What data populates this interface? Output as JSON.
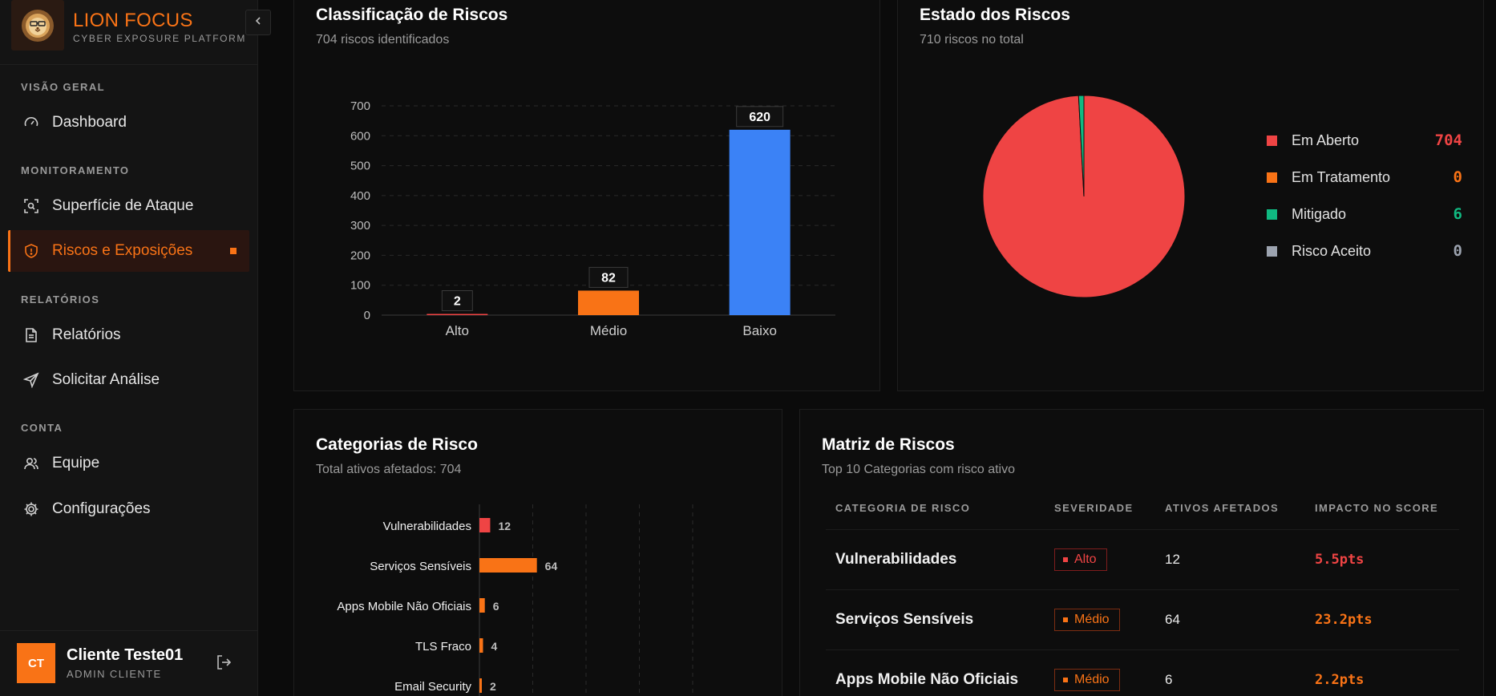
{
  "brand": {
    "name": "LION FOCUS",
    "subtitle": "CYBER EXPOSURE PLATFORM"
  },
  "colors": {
    "accent": "#f97316",
    "alto": "#ef4444",
    "medio": "#f97316",
    "baixo": "#3b82f6",
    "mitigado": "#10b981",
    "aceito": "#9ca3af"
  },
  "sidebar": {
    "sections": [
      {
        "label": "VISÃO GERAL"
      },
      {
        "label": "MONITORAMENTO"
      },
      {
        "label": "RELATÓRIOS"
      },
      {
        "label": "CONTA"
      }
    ],
    "items": [
      {
        "label": "Dashboard",
        "icon": "gauge-icon"
      },
      {
        "label": "Superfície de Ataque",
        "icon": "scan-icon"
      },
      {
        "label": "Riscos e Exposições",
        "icon": "shield-icon",
        "active": true
      },
      {
        "label": "Relatórios",
        "icon": "document-icon"
      },
      {
        "label": "Solicitar Análise",
        "icon": "send-icon"
      },
      {
        "label": "Equipe",
        "icon": "users-icon"
      },
      {
        "label": "Configurações",
        "icon": "gear-icon"
      }
    ]
  },
  "user": {
    "initials": "CT",
    "name": "Cliente Teste01",
    "role": "ADMIN CLIENTE"
  },
  "classificacao": {
    "title": "Classificação de Riscos",
    "subtitle": "704 riscos identificados"
  },
  "estado": {
    "title": "Estado dos Riscos",
    "subtitle": "710 riscos no total",
    "legend": [
      {
        "label": "Em Aberto",
        "value": "704",
        "color": "#ef4444"
      },
      {
        "label": "Em Tratamento",
        "value": "0",
        "color": "#f97316"
      },
      {
        "label": "Mitigado",
        "value": "6",
        "color": "#10b981"
      },
      {
        "label": "Risco Aceito",
        "value": "0",
        "color": "#9ca3af"
      }
    ]
  },
  "categorias": {
    "title": "Categorias de Risco",
    "subtitle": "Total ativos afetados: 704"
  },
  "matriz": {
    "title": "Matriz de Riscos",
    "subtitle": "Top 10 Categorias com risco ativo",
    "headers": [
      "CATEGORIA DE RISCO",
      "SEVERIDADE",
      "ATIVOS AFETADOS",
      "IMPACTO NO SCORE"
    ],
    "rows": [
      {
        "categoria": "Vulnerabilidades",
        "severidade": "Alto",
        "ativos": "12",
        "impacto": "5.5pts"
      },
      {
        "categoria": "Serviços Sensíveis",
        "severidade": "Médio",
        "ativos": "64",
        "impacto": "23.2pts"
      },
      {
        "categoria": "Apps Mobile Não Oficiais",
        "severidade": "Médio",
        "ativos": "6",
        "impacto": "2.2pts"
      }
    ]
  },
  "chart_data": [
    {
      "type": "bar",
      "categories": [
        "Alto",
        "Médio",
        "Baixo"
      ],
      "values": [
        2,
        82,
        620
      ],
      "colors": [
        "#ef4444",
        "#f97316",
        "#3b82f6"
      ],
      "yticks": [
        0,
        100,
        200,
        300,
        400,
        500,
        600,
        700
      ],
      "ylim": [
        0,
        700
      ],
      "data_labels": true,
      "grid": "horizontal dashed"
    },
    {
      "type": "pie",
      "labels": [
        "Em Aberto",
        "Em Tratamento",
        "Mitigado",
        "Risco Aceito"
      ],
      "values": [
        704,
        0,
        6,
        0
      ],
      "colors": [
        "#ef4444",
        "#f97316",
        "#10b981",
        "#9ca3af"
      ],
      "legend": "right"
    },
    {
      "type": "bar",
      "orientation": "horizontal",
      "categories": [
        "Vulnerabilidades",
        "Serviços Sensíveis",
        "Apps Mobile Não Oficiais",
        "TLS Fraco",
        "Email Security"
      ],
      "values": [
        12,
        64,
        6,
        4,
        2
      ],
      "colors": [
        "#ef4444",
        "#f97316",
        "#f97316",
        "#f97316",
        "#f97316"
      ],
      "data_labels": true,
      "grid": "vertical dashed"
    }
  ]
}
